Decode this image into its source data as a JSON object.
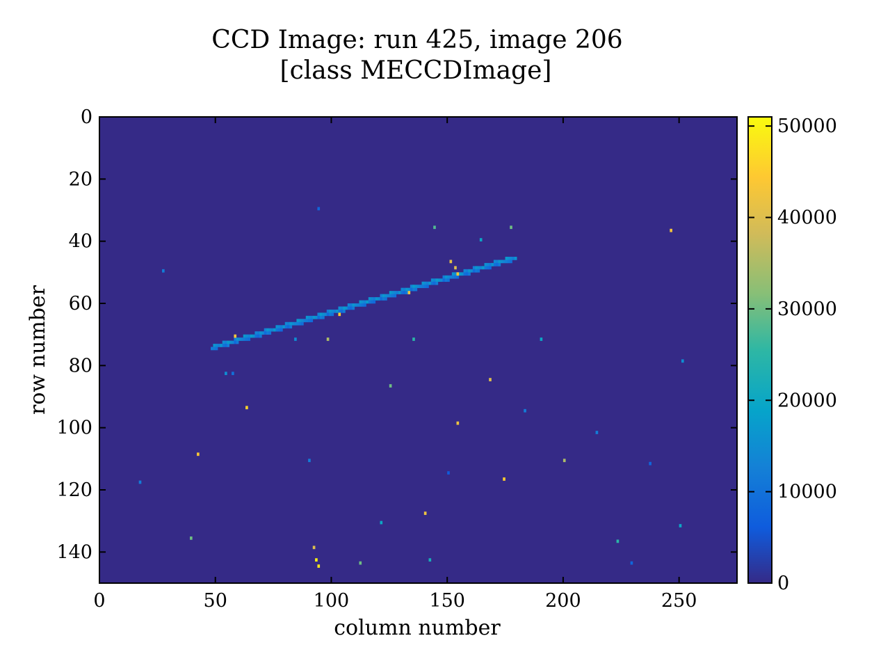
{
  "chart_data": {
    "type": "heatmap",
    "title": "CCD Image: run 425, image 206",
    "subtitle": "[class MECCDImage]",
    "xlabel": "column number",
    "ylabel": "row number",
    "xlim": [
      0,
      275
    ],
    "ylim": [
      150,
      0
    ],
    "x_ticks": [
      0,
      50,
      100,
      150,
      200,
      250
    ],
    "y_ticks": [
      0,
      20,
      40,
      60,
      80,
      100,
      120,
      140
    ],
    "colorbar": {
      "min": 0,
      "max": 51000,
      "ticks": [
        0,
        10000,
        20000,
        30000,
        40000,
        50000
      ],
      "colormap": "parula"
    },
    "background_value": 0,
    "track": {
      "from": [
        48,
        74
      ],
      "to": [
        179,
        45
      ],
      "intensity": 15000,
      "bright_pixels": [
        [
          58,
          70,
          43000
        ],
        [
          103,
          63,
          45000
        ],
        [
          133,
          56,
          42000
        ],
        [
          151,
          46,
          41000
        ],
        [
          153,
          48,
          40000
        ],
        [
          154,
          50,
          44000
        ]
      ]
    },
    "hits": [
      [
        94,
        29,
        8000
      ],
      [
        144,
        35,
        28000
      ],
      [
        177,
        35,
        30000
      ],
      [
        246,
        36,
        43000
      ],
      [
        164,
        39,
        20000
      ],
      [
        27,
        49,
        12000
      ],
      [
        84,
        71,
        15000
      ],
      [
        98,
        71,
        35000
      ],
      [
        135,
        71,
        25000
      ],
      [
        190,
        71,
        20000
      ],
      [
        251,
        78,
        15000
      ],
      [
        54,
        82,
        15000
      ],
      [
        57,
        82,
        10000
      ],
      [
        125,
        86,
        30000
      ],
      [
        168,
        84,
        40000
      ],
      [
        63,
        93,
        46000
      ],
      [
        183,
        94,
        12000
      ],
      [
        154,
        98,
        42000
      ],
      [
        214,
        101,
        12000
      ],
      [
        42,
        108,
        44000
      ],
      [
        90,
        110,
        12000
      ],
      [
        200,
        110,
        35000
      ],
      [
        237,
        111,
        8000
      ],
      [
        150,
        114,
        6000
      ],
      [
        17,
        117,
        12000
      ],
      [
        174,
        116,
        45000
      ],
      [
        140,
        127,
        42000
      ],
      [
        121,
        130,
        20000
      ],
      [
        250,
        131,
        20000
      ],
      [
        39,
        135,
        30000
      ],
      [
        223,
        136,
        25000
      ],
      [
        92,
        138,
        40000
      ],
      [
        229,
        143,
        8000
      ],
      [
        93,
        142,
        50000
      ],
      [
        94,
        144,
        48000
      ],
      [
        112,
        143,
        30000
      ],
      [
        142,
        142,
        22000
      ]
    ]
  }
}
